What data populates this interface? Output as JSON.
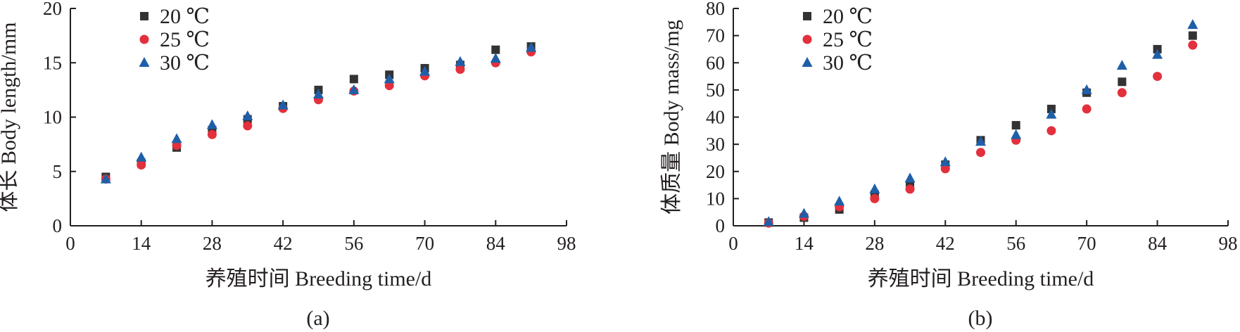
{
  "chart_data": [
    {
      "type": "scatter",
      "panel_label": "(a)",
      "xlabel": "养殖时间 Breeding time/d",
      "ylabel": "体长 Body length/mm",
      "xlim": [
        0,
        98
      ],
      "ylim": [
        0,
        20
      ],
      "x_ticks": [
        "0",
        "14",
        "28",
        "42",
        "56",
        "70",
        "84",
        "98"
      ],
      "y_ticks": [
        "0",
        "5",
        "10",
        "15",
        "20"
      ],
      "grid": false,
      "legend_position": "top-left",
      "series": [
        {
          "name": "20 ℃",
          "marker": "square",
          "color": "#333333",
          "x": [
            7,
            14,
            21,
            28,
            35,
            42,
            49,
            56,
            63,
            70,
            77,
            84,
            91
          ],
          "y": [
            4.5,
            5.8,
            7.2,
            8.8,
            9.8,
            11.0,
            12.5,
            13.5,
            13.9,
            14.5,
            14.8,
            16.2,
            16.5
          ]
        },
        {
          "name": "25 ℃",
          "marker": "circle",
          "color": "#e3303c",
          "x": [
            7,
            14,
            21,
            28,
            35,
            42,
            49,
            56,
            63,
            70,
            77,
            84,
            91
          ],
          "y": [
            4.3,
            5.6,
            7.4,
            8.4,
            9.2,
            10.8,
            11.6,
            12.4,
            12.9,
            13.8,
            14.4,
            15.0,
            16.0
          ]
        },
        {
          "name": "30 ℃",
          "marker": "triangle",
          "color": "#1f5fa8",
          "x": [
            7,
            14,
            21,
            28,
            35,
            42,
            49,
            56,
            63,
            70,
            77,
            84,
            91
          ],
          "y": [
            4.3,
            6.3,
            8.0,
            9.3,
            10.1,
            11.1,
            12.1,
            12.5,
            13.5,
            14.2,
            15.1,
            15.4,
            16.4
          ]
        }
      ]
    },
    {
      "type": "scatter",
      "panel_label": "(b)",
      "xlabel": "养殖时间 Breeding time/d",
      "ylabel": "体质量 Body mass/mg",
      "xlim": [
        0,
        98
      ],
      "ylim": [
        0,
        80
      ],
      "x_ticks": [
        "0",
        "14",
        "28",
        "42",
        "56",
        "70",
        "84",
        "98"
      ],
      "y_ticks": [
        "0",
        "10",
        "20",
        "30",
        "40",
        "50",
        "60",
        "70",
        "80"
      ],
      "grid": false,
      "legend_position": "top-left",
      "series": [
        {
          "name": "20 ℃",
          "marker": "square",
          "color": "#333333",
          "x": [
            7,
            14,
            21,
            28,
            35,
            42,
            49,
            56,
            63,
            70,
            77,
            84,
            91
          ],
          "y": [
            1.2,
            3.0,
            6.0,
            11.5,
            15.0,
            22.5,
            31.5,
            37.0,
            43.0,
            49.0,
            53.0,
            65.0,
            70.0
          ]
        },
        {
          "name": "25 ℃",
          "marker": "circle",
          "color": "#e3303c",
          "x": [
            7,
            14,
            21,
            28,
            35,
            42,
            49,
            56,
            63,
            70,
            77,
            84,
            91
          ],
          "y": [
            1.0,
            3.5,
            7.0,
            10.0,
            13.5,
            21.0,
            27.0,
            31.5,
            35.0,
            43.0,
            49.0,
            55.0,
            66.5
          ]
        },
        {
          "name": "30 ℃",
          "marker": "triangle",
          "color": "#1f5fa8",
          "x": [
            7,
            14,
            21,
            28,
            35,
            42,
            49,
            56,
            63,
            70,
            77,
            84,
            91
          ],
          "y": [
            1.5,
            4.5,
            9.0,
            13.5,
            17.5,
            23.5,
            31.0,
            33.5,
            41.0,
            50.0,
            59.0,
            63.0,
            74.0
          ]
        }
      ]
    }
  ]
}
